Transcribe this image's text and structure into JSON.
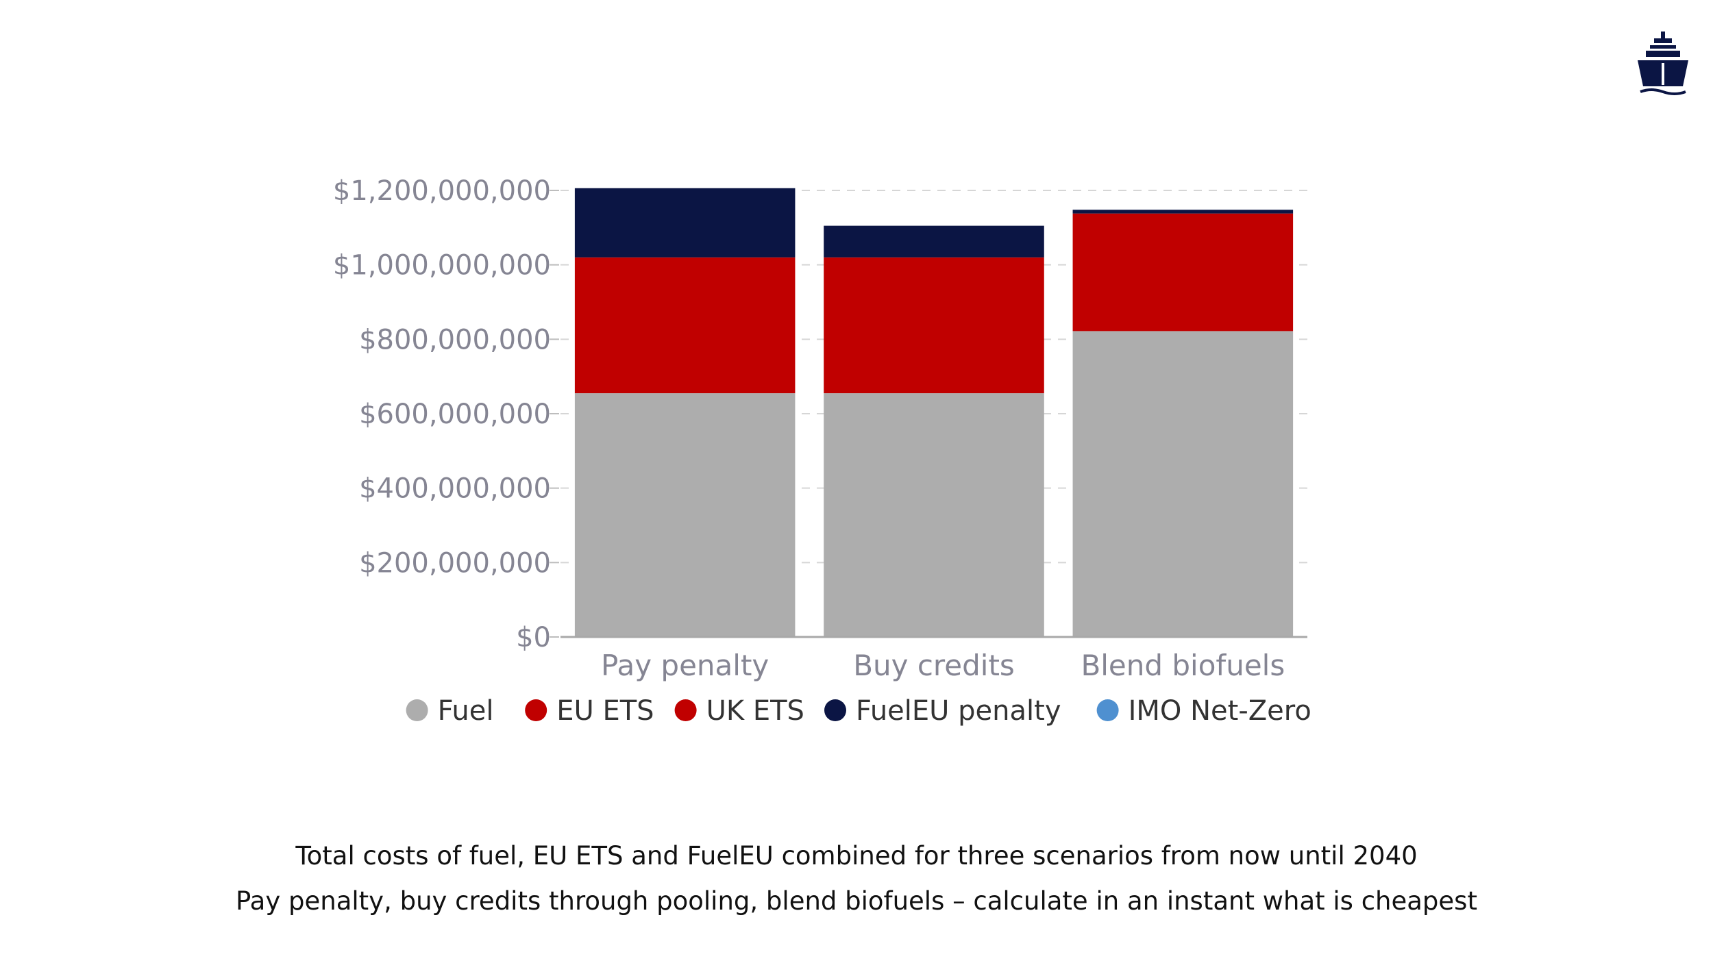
{
  "brand": {
    "logo_icon": "ship-icon",
    "logo_color": "#0b1544"
  },
  "chart_data": {
    "type": "bar",
    "stacked": true,
    "categories": [
      "Pay penalty",
      "Buy credits",
      "Blend biofuels"
    ],
    "series": [
      {
        "name": "Fuel",
        "color": "#adadad",
        "values": [
          655000000,
          655000000,
          822000000
        ]
      },
      {
        "name": "EU ETS",
        "color": "#c00000",
        "values": [
          365000000,
          365000000,
          316000000
        ]
      },
      {
        "name": "UK ETS",
        "color": "#c00000",
        "values": [
          0,
          0,
          0
        ]
      },
      {
        "name": "FuelEU penalty",
        "color": "#0b1544",
        "values": [
          186000000,
          85000000,
          10000000
        ]
      },
      {
        "name": "IMO Net-Zero",
        "color": "#4f90d0",
        "values": [
          0,
          0,
          0
        ]
      }
    ],
    "yticks": [
      "$0",
      "$200,000,000",
      "$400,000,000",
      "$600,000,000",
      "$800,000,000",
      "$1,000,000,000",
      "$1,200,000,000"
    ],
    "ytick_values": [
      0,
      200000000,
      400000000,
      600000000,
      800000000,
      1000000000,
      1200000000
    ],
    "ylim": [
      0,
      1200000000
    ],
    "grid": "dashed-horizontal",
    "legend_position": "bottom",
    "title": "",
    "xlabel": "",
    "ylabel": ""
  },
  "captions": {
    "line1": "Total costs of fuel, EU ETS and FuelEU combined for three scenarios from now until 2040",
    "line2": "Pay penalty, buy credits through pooling, blend biofuels – calculate in an instant what is cheapest"
  }
}
